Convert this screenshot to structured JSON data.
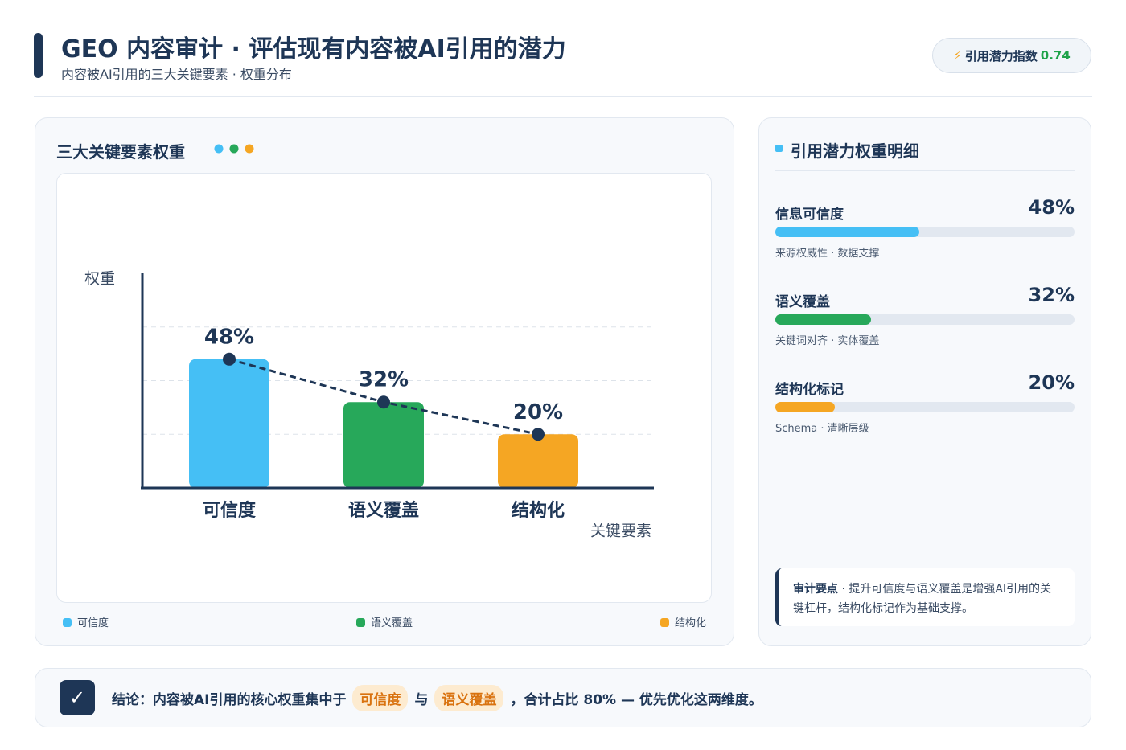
{
  "header": {
    "title": "GEO 内容审计 · 评估现有内容被AI引用的潜力",
    "subtitle": "内容被AI引用的三大关键要素 · 权重分布",
    "badge_label": "引用潜力指数",
    "badge_value": 0.74
  },
  "chart_data": {
    "type": "bar",
    "title": "三大关键要素权重",
    "y_label": "权重",
    "x_label": "关键要素",
    "categories": [
      "可信度",
      "语义覆盖",
      "结构化"
    ],
    "values": [
      48,
      32,
      20
    ],
    "value_labels": [
      "48%",
      "32%",
      "20%"
    ],
    "colors": [
      "#45bff5",
      "#27a85a",
      "#f5a623"
    ],
    "line_color": "#1e3656",
    "ylim": [
      0,
      80
    ],
    "grid": true,
    "legend": "bottom"
  },
  "panel": {
    "title": "引用潜力权重明细",
    "items": [
      {
        "name": "信息可信度",
        "value": 48,
        "value_label": "48%",
        "note": "来源权威性 · 数据支撑",
        "color": "#45bff5"
      },
      {
        "name": "语义覆盖",
        "value": 32,
        "value_label": "32%",
        "note": "关键词对齐 · 实体覆盖",
        "color": "#27a85a"
      },
      {
        "name": "结构化标记",
        "value": 20,
        "value_label": "20%",
        "note": "Schema · 清晰层级",
        "color": "#f5a623"
      }
    ],
    "tip_label": "审计要点",
    "tip_text": " · 提升可信度与语义覆盖是增强AI引用的关键杠杆，结构化标记作为基础支撑。"
  },
  "conclusion": {
    "lead": "结论：内容被AI引用的核心权重集中于",
    "highlight_1": "可信度",
    "joiner": "与",
    "highlight_2": "语义覆盖",
    "tail": "，合计占比 80% — 优先优化这两维度。"
  }
}
